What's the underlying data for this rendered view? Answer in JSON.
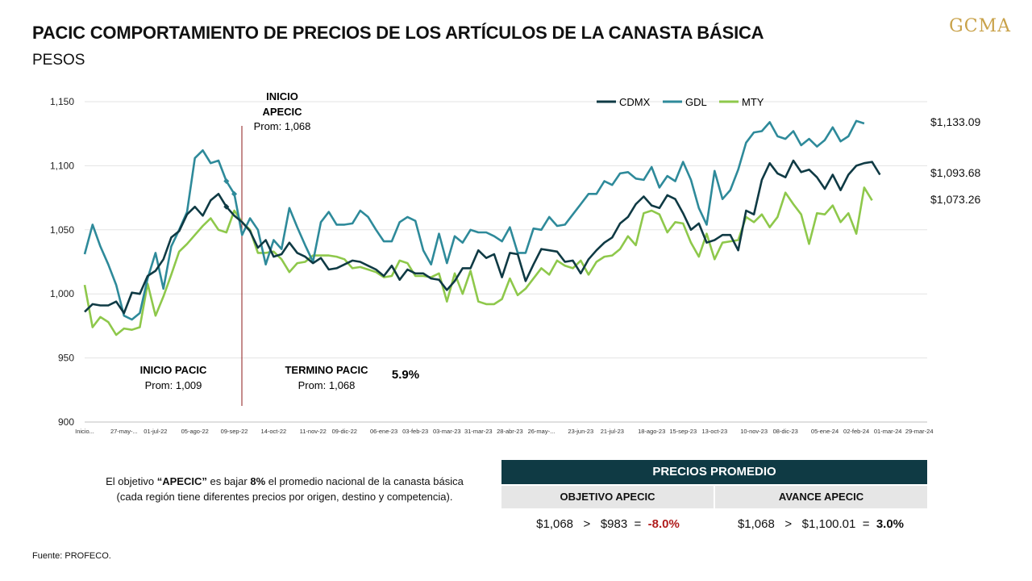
{
  "header": {
    "title": "PACIC COMPORTAMIENTO DE PRECIOS DE LOS ARTÍCULOS DE LA CANASTA BÁSICA",
    "subtitle": "PESOS",
    "logo_text": "GCMA"
  },
  "chart_data": {
    "type": "line",
    "ylim": [
      900,
      1150
    ],
    "y_ticks": [
      "900",
      "950",
      "1,000",
      "1,050",
      "1,100",
      "1,150"
    ],
    "y_tick_values": [
      900,
      950,
      1000,
      1050,
      1100,
      1150
    ],
    "x_tick_labels": [
      {
        "i": 0,
        "label": "Inicio..."
      },
      {
        "i": 5,
        "label": "27-may-..."
      },
      {
        "i": 9,
        "label": "01-jul-22"
      },
      {
        "i": 14,
        "label": "05-ago-22"
      },
      {
        "i": 19,
        "label": "09-sep-22"
      },
      {
        "i": 24,
        "label": "14-oct-22"
      },
      {
        "i": 29,
        "label": "11-nov-22"
      },
      {
        "i": 33,
        "label": "09-dic-22"
      },
      {
        "i": 38,
        "label": "06-ene-23"
      },
      {
        "i": 42,
        "label": "03-feb-23"
      },
      {
        "i": 46,
        "label": "03-mar-23"
      },
      {
        "i": 50,
        "label": "31-mar-23"
      },
      {
        "i": 54,
        "label": "28-abr-23"
      },
      {
        "i": 58,
        "label": "26-may-..."
      },
      {
        "i": 63,
        "label": "23-jun-23"
      },
      {
        "i": 67,
        "label": "21-jul-23"
      },
      {
        "i": 72,
        "label": "18-ago-23"
      },
      {
        "i": 76,
        "label": "15-sep-23"
      },
      {
        "i": 80,
        "label": "13-oct-23"
      },
      {
        "i": 85,
        "label": "10-nov-23"
      },
      {
        "i": 89,
        "label": "08-dic-23"
      },
      {
        "i": 94,
        "label": "05-ene-24"
      },
      {
        "i": 98,
        "label": "02-feb-24"
      },
      {
        "i": 102,
        "label": "01-mar-24"
      },
      {
        "i": 106,
        "label": "29-mar-24"
      }
    ],
    "legend_position": "top-center",
    "series": [
      {
        "name": "CDMX",
        "color": "#0f3a44",
        "end_label": "$1,093.68",
        "values": [
          986,
          992,
          991,
          991,
          994,
          985,
          1001,
          1000,
          1014,
          1018,
          1027,
          1044,
          1049,
          1062,
          1068,
          1061,
          1073,
          1078,
          1068,
          1061,
          1056,
          1049,
          1036,
          1042,
          1029,
          1031,
          1040,
          1032,
          1029,
          1024,
          1028,
          1019,
          1020,
          1023,
          1026,
          1025,
          1022,
          1019,
          1014,
          1022,
          1011,
          1019,
          1016,
          1016,
          1012,
          1011,
          1003,
          1010,
          1020,
          1020,
          1034,
          1028,
          1031,
          1013,
          1032,
          1031,
          1010,
          1023,
          1035,
          1034,
          1033,
          1025,
          1026,
          1016,
          1027,
          1034,
          1040,
          1044,
          1055,
          1060,
          1070,
          1076,
          1069,
          1067,
          1077,
          1074,
          1063,
          1050,
          1055,
          1040,
          1042,
          1046,
          1046,
          1034,
          1065,
          1062,
          1089,
          1102,
          1094,
          1091,
          1104,
          1095,
          1097,
          1091,
          1082,
          1093,
          1081,
          1093,
          1100,
          1102,
          1103,
          1093
        ]
      },
      {
        "name": "GDL",
        "color": "#2e8a9a",
        "end_label": "$1,133.09",
        "values": [
          1031,
          1054,
          1037,
          1023,
          1007,
          983,
          980,
          985,
          1012,
          1032,
          1004,
          1037,
          1050,
          1064,
          1106,
          1112,
          1102,
          1104,
          1088,
          1078,
          1046,
          1059,
          1050,
          1023,
          1042,
          1035,
          1067,
          1052,
          1038,
          1025,
          1056,
          1064,
          1054,
          1054,
          1055,
          1065,
          1060,
          1050,
          1041,
          1041,
          1056,
          1060,
          1057,
          1034,
          1023,
          1047,
          1024,
          1045,
          1040,
          1050,
          1048,
          1048,
          1045,
          1041,
          1052,
          1032,
          1032,
          1051,
          1050,
          1060,
          1053,
          1054,
          1062,
          1070,
          1078,
          1078,
          1088,
          1085,
          1094,
          1095,
          1090,
          1089,
          1099,
          1083,
          1092,
          1088,
          1103,
          1089,
          1067,
          1054,
          1096,
          1074,
          1081,
          1097,
          1118,
          1126,
          1127,
          1134,
          1123,
          1121,
          1127,
          1116,
          1121,
          1115,
          1120,
          1130,
          1119,
          1123,
          1135,
          1133
        ]
      },
      {
        "name": "MTY",
        "color": "#8ec84b",
        "end_label": "$1,073.26",
        "values": [
          1007,
          974,
          982,
          978,
          968,
          973,
          972,
          974,
          1008,
          983,
          998,
          1015,
          1033,
          1039,
          1046,
          1053,
          1059,
          1050,
          1048,
          1065,
          1056,
          1050,
          1032,
          1032,
          1033,
          1027,
          1017,
          1024,
          1025,
          1030,
          1030,
          1030,
          1029,
          1027,
          1020,
          1021,
          1019,
          1017,
          1013,
          1014,
          1026,
          1024,
          1014,
          1014,
          1013,
          1016,
          994,
          1016,
          1000,
          1018,
          994,
          992,
          992,
          996,
          1012,
          999,
          1004,
          1012,
          1020,
          1015,
          1026,
          1022,
          1020,
          1026,
          1015,
          1025,
          1029,
          1030,
          1035,
          1045,
          1038,
          1063,
          1065,
          1062,
          1048,
          1056,
          1055,
          1040,
          1029,
          1047,
          1027,
          1040,
          1041,
          1042,
          1060,
          1056,
          1062,
          1052,
          1060,
          1079,
          1070,
          1062,
          1039,
          1063,
          1062,
          1069,
          1056,
          1063,
          1047,
          1083,
          1073
        ]
      }
    ],
    "annotations": {
      "apecic_title_1": "INICIO",
      "apecic_title_2": "APECIC",
      "apecic_prom": "Prom:  1,068",
      "inicio_pacic_title": "INICIO PACIC",
      "inicio_pacic_prom": "Prom:  1,009",
      "termino_pacic_title": "TERMINO PACIC",
      "termino_pacic_prom": "Prom:  1,068",
      "termino_pacic_pct": "5.9%"
    }
  },
  "note": {
    "prefix": "El objetivo ",
    "highlight": "“APECIC”",
    "middle": " es bajar ",
    "pct": "8%",
    "suffix": " el promedio  nacional de la canasta básica (cada región tiene diferentes precios por origen, destino y competencia)."
  },
  "table": {
    "header": "PRECIOS PROMEDIO",
    "col1": "OBJETIVO APECIC",
    "col2": "AVANCE APECIC",
    "val1_a": "$1,068",
    "val1_op": ">",
    "val1_b": "$983",
    "val1_eq": "=",
    "val1_pct": "-8.0%",
    "val2_a": "$1,068",
    "val2_op": ">",
    "val2_b": "$1,100.01",
    "val2_eq": "=",
    "val2_pct": "3.0%"
  },
  "footer": {
    "source": "Fuente:  PROFECO."
  }
}
